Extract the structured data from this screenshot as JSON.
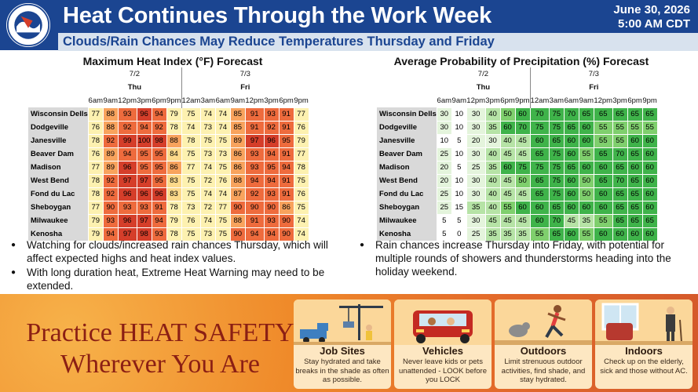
{
  "header": {
    "title": "Heat Continues Through the Work Week",
    "subtitle": "Clouds/Rain Chances May Reduce Temperatures Thursday and Friday",
    "date": "June 30, 2026",
    "time": "5:00 AM CDT",
    "logo_text": "NATIONAL WEATHER SERVICE"
  },
  "heat_table": {
    "title": "Maximum Heat Index (°F) Forecast",
    "days": [
      {
        "date": "7/2",
        "name": "Thu"
      },
      {
        "date": "7/3",
        "name": "Fri"
      }
    ],
    "times": [
      "6am",
      "9am",
      "12pm",
      "3pm",
      "6pm",
      "9pm",
      "12am",
      "3am",
      "6am",
      "9am",
      "12pm",
      "3pm",
      "6pm",
      "9pm"
    ],
    "locations": [
      "Wisconsin Dells",
      "Dodgeville",
      "Janesville",
      "Beaver Dam",
      "Madison",
      "West Bend",
      "Fond du Lac",
      "Sheboygan",
      "Milwaukee",
      "Kenosha"
    ],
    "values": [
      [
        77,
        88,
        93,
        96,
        94,
        79,
        75,
        74,
        74,
        85,
        91,
        93,
        91,
        77
      ],
      [
        76,
        88,
        92,
        94,
        92,
        78,
        74,
        73,
        74,
        85,
        91,
        92,
        91,
        76
      ],
      [
        78,
        92,
        99,
        100,
        98,
        88,
        78,
        75,
        75,
        89,
        97,
        96,
        95,
        79
      ],
      [
        76,
        89,
        94,
        95,
        95,
        84,
        75,
        73,
        73,
        86,
        93,
        94,
        91,
        77
      ],
      [
        77,
        89,
        96,
        95,
        95,
        86,
        77,
        74,
        75,
        86,
        93,
        95,
        94,
        78
      ],
      [
        78,
        92,
        97,
        97,
        95,
        83,
        75,
        72,
        76,
        88,
        94,
        94,
        91,
        75
      ],
      [
        78,
        92,
        96,
        96,
        96,
        83,
        75,
        74,
        74,
        87,
        92,
        93,
        91,
        76
      ],
      [
        77,
        90,
        93,
        93,
        91,
        78,
        73,
        72,
        77,
        90,
        90,
        90,
        86,
        75
      ],
      [
        79,
        93,
        96,
        97,
        94,
        79,
        76,
        74,
        75,
        88,
        91,
        93,
        90,
        74
      ],
      [
        79,
        94,
        97,
        98,
        93,
        78,
        75,
        73,
        75,
        90,
        94,
        94,
        90,
        74
      ]
    ],
    "colors": {
      "c1": "#fdf1b0",
      "c2": "#fcd98a",
      "c3": "#f8a35d",
      "c4": "#ee6b3d",
      "c5": "#d53e2a"
    }
  },
  "pop_table": {
    "title": "Average Probability of Precipitation (%) Forecast",
    "days": [
      {
        "date": "7/2",
        "name": "Thu"
      },
      {
        "date": "7/3",
        "name": "Fri"
      }
    ],
    "times": [
      "6am",
      "9am",
      "12pm",
      "3pm",
      "6pm",
      "9pm",
      "12am",
      "3am",
      "6am",
      "9am",
      "12pm",
      "3pm",
      "6pm",
      "9pm"
    ],
    "locations": [
      "Wisconsin Dells",
      "Dodgeville",
      "Janesville",
      "Beaver Dam",
      "Madison",
      "West Bend",
      "Fond du Lac",
      "Sheboygan",
      "Milwaukee",
      "Kenosha"
    ],
    "values": [
      [
        30,
        10,
        30,
        40,
        50,
        60,
        70,
        75,
        70,
        65,
        65,
        65,
        65,
        65
      ],
      [
        30,
        10,
        30,
        35,
        60,
        70,
        75,
        75,
        65,
        60,
        55,
        55,
        55,
        55
      ],
      [
        10,
        5,
        20,
        30,
        40,
        45,
        60,
        65,
        60,
        60,
        55,
        55,
        60,
        60
      ],
      [
        25,
        10,
        30,
        40,
        45,
        45,
        65,
        75,
        60,
        55,
        65,
        70,
        65,
        60
      ],
      [
        20,
        5,
        25,
        35,
        60,
        75,
        75,
        75,
        65,
        60,
        60,
        65,
        60,
        60
      ],
      [
        20,
        10,
        30,
        40,
        45,
        50,
        65,
        75,
        60,
        50,
        65,
        70,
        65,
        60
      ],
      [
        25,
        10,
        30,
        40,
        45,
        45,
        65,
        75,
        60,
        50,
        60,
        65,
        65,
        60
      ],
      [
        25,
        15,
        35,
        40,
        55,
        60,
        60,
        65,
        60,
        60,
        60,
        65,
        65,
        60
      ],
      [
        5,
        5,
        30,
        45,
        45,
        45,
        60,
        70,
        45,
        35,
        55,
        65,
        65,
        65
      ],
      [
        5,
        0,
        25,
        35,
        35,
        35,
        55,
        65,
        60,
        55,
        60,
        60,
        60,
        60
      ]
    ],
    "colors": {
      "c0": "#ffffff",
      "c1": "#e4f4dc",
      "c2": "#b6e3a6",
      "c3": "#7fcf6d",
      "c4": "#3fb34a"
    }
  },
  "bullets_left": [
    "Watching for clouds/increased rain chances Thursday, which will affect expected highs and heat index values.",
    "With long duration heat, Extreme Heat Warning may need to be extended."
  ],
  "bullets_right": [
    "Rain chances increase Thursday into Friday, with potential for multiple rounds of showers and thunderstorms heading into the holiday weekend."
  ],
  "banner": {
    "line1": "Practice HEAT SAFETY",
    "line2": "Wherever You Are",
    "cards": [
      {
        "title": "Job Sites",
        "desc": "Stay hydrated and take breaks in the shade as often as possible.",
        "icon": "construction-site-icon"
      },
      {
        "title": "Vehicles",
        "desc": "Never leave kids or pets unattended - LOOK before you LOCK",
        "icon": "car-with-family-icon"
      },
      {
        "title": "Outdoors",
        "desc": "Limit strenuous outdoor activities, find shade, and stay hydrated.",
        "icon": "runner-icon"
      },
      {
        "title": "Indoors",
        "desc": "Check up on the elderly, sick and those without AC.",
        "icon": "elderly-person-icon"
      }
    ]
  }
}
